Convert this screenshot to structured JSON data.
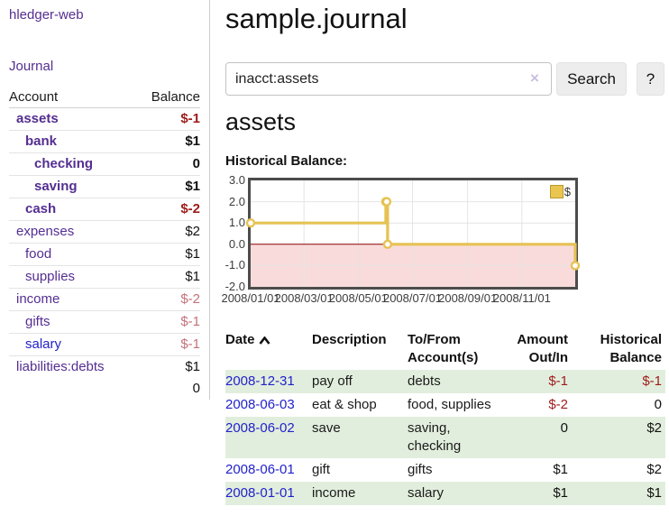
{
  "sidebar": {
    "brand": "hledger-web",
    "journal_link": "Journal",
    "accounts_table": {
      "account_header": "Account",
      "balance_header": "Balance",
      "rows": [
        {
          "name": "assets",
          "balance": "$-1",
          "level": 1,
          "bold": true,
          "negative": true,
          "blue": false
        },
        {
          "name": "bank",
          "balance": "$1",
          "level": 2,
          "bold": true,
          "negative": false,
          "blue": false
        },
        {
          "name": "checking",
          "balance": "0",
          "level": 3,
          "bold": true,
          "negative": false,
          "blue": false
        },
        {
          "name": "saving",
          "balance": "$1",
          "level": 3,
          "bold": true,
          "negative": false,
          "blue": false
        },
        {
          "name": "cash",
          "balance": "$-2",
          "level": 2,
          "bold": true,
          "negative": true,
          "blue": false
        },
        {
          "name": "expenses",
          "balance": "$2",
          "level": 1,
          "bold": false,
          "negative": false,
          "blue": false
        },
        {
          "name": "food",
          "balance": "$1",
          "level": 2,
          "bold": false,
          "negative": false,
          "blue": false
        },
        {
          "name": "supplies",
          "balance": "$1",
          "level": 2,
          "bold": false,
          "negative": false,
          "blue": false
        },
        {
          "name": "income",
          "balance": "$-2",
          "level": 1,
          "bold": false,
          "negative": true,
          "blue": false
        },
        {
          "name": "gifts",
          "balance": "$-1",
          "level": 2,
          "bold": false,
          "negative": true,
          "blue": false
        },
        {
          "name": "salary",
          "balance": "$-1",
          "level": 2,
          "bold": false,
          "negative": true,
          "blue": true
        },
        {
          "name": "liabilities:debts",
          "balance": "$1",
          "level": 1,
          "bold": false,
          "negative": false,
          "blue": false
        }
      ],
      "total": "0"
    }
  },
  "main": {
    "title": "sample.journal",
    "search": {
      "value": "inacct:assets",
      "clear_icon": "×",
      "search_button": "Search",
      "help_button": "?"
    },
    "account_heading": "assets",
    "chart_label": "Historical Balance:",
    "register": {
      "headers": [
        "Date",
        "Description",
        "To/From Account(s)",
        "Amount Out/In",
        "Historical Balance"
      ],
      "rows": [
        {
          "date": "2008-12-31",
          "description": "pay off",
          "accounts": "debts",
          "amount": "$-1",
          "balance": "$-1",
          "amount_negative": true,
          "balance_negative": true,
          "shaded": true
        },
        {
          "date": "2008-06-03",
          "description": "eat & shop",
          "accounts": "food, supplies",
          "amount": "$-2",
          "balance": "0",
          "amount_negative": true,
          "balance_negative": false,
          "shaded": false
        },
        {
          "date": "2008-06-02",
          "description": "save",
          "accounts": "saving, checking",
          "amount": "0",
          "balance": "$2",
          "amount_negative": false,
          "balance_negative": false,
          "shaded": true
        },
        {
          "date": "2008-06-01",
          "description": "gift",
          "accounts": "gifts",
          "amount": "$1",
          "balance": "$2",
          "amount_negative": false,
          "balance_negative": false,
          "shaded": false
        },
        {
          "date": "2008-01-01",
          "description": "income",
          "accounts": "salary",
          "amount": "$1",
          "balance": "$1",
          "amount_negative": false,
          "balance_negative": false,
          "shaded": true
        }
      ]
    }
  },
  "chart_data": {
    "type": "line",
    "step": true,
    "title": "Historical Balance:",
    "series": [
      {
        "name": "$",
        "color": "#e6c253",
        "points": [
          [
            "2008-01-01",
            1
          ],
          [
            "2008-06-01",
            2
          ],
          [
            "2008-06-02",
            2
          ],
          [
            "2008-06-03",
            0
          ],
          [
            "2008-12-31",
            -1
          ]
        ]
      }
    ],
    "x_range": [
      "2008-01-01",
      "2008-12-31"
    ],
    "x_ticks": [
      "2008/01/01",
      "2008/03/01",
      "2008/05/01",
      "2008/07/01",
      "2008/09/01",
      "2008/11/01"
    ],
    "y_ticks": [
      3.0,
      2.0,
      1.0,
      0.0,
      -1.0,
      -2.0
    ],
    "ylim": [
      -2,
      3
    ],
    "grid": true,
    "legend_position": "top-right",
    "negative_region_color": "#f9dbdb",
    "zero_line_color": "#8b0000",
    "grid_color": "#e4e4e4"
  },
  "colors": {
    "link_purple": "#542e91",
    "link_blue": "#2222cc",
    "negative_strong": "#9e1b1b",
    "negative_soft": "#c4717a",
    "row_green": "#e2eedd",
    "line_gold": "#e6c253"
  }
}
